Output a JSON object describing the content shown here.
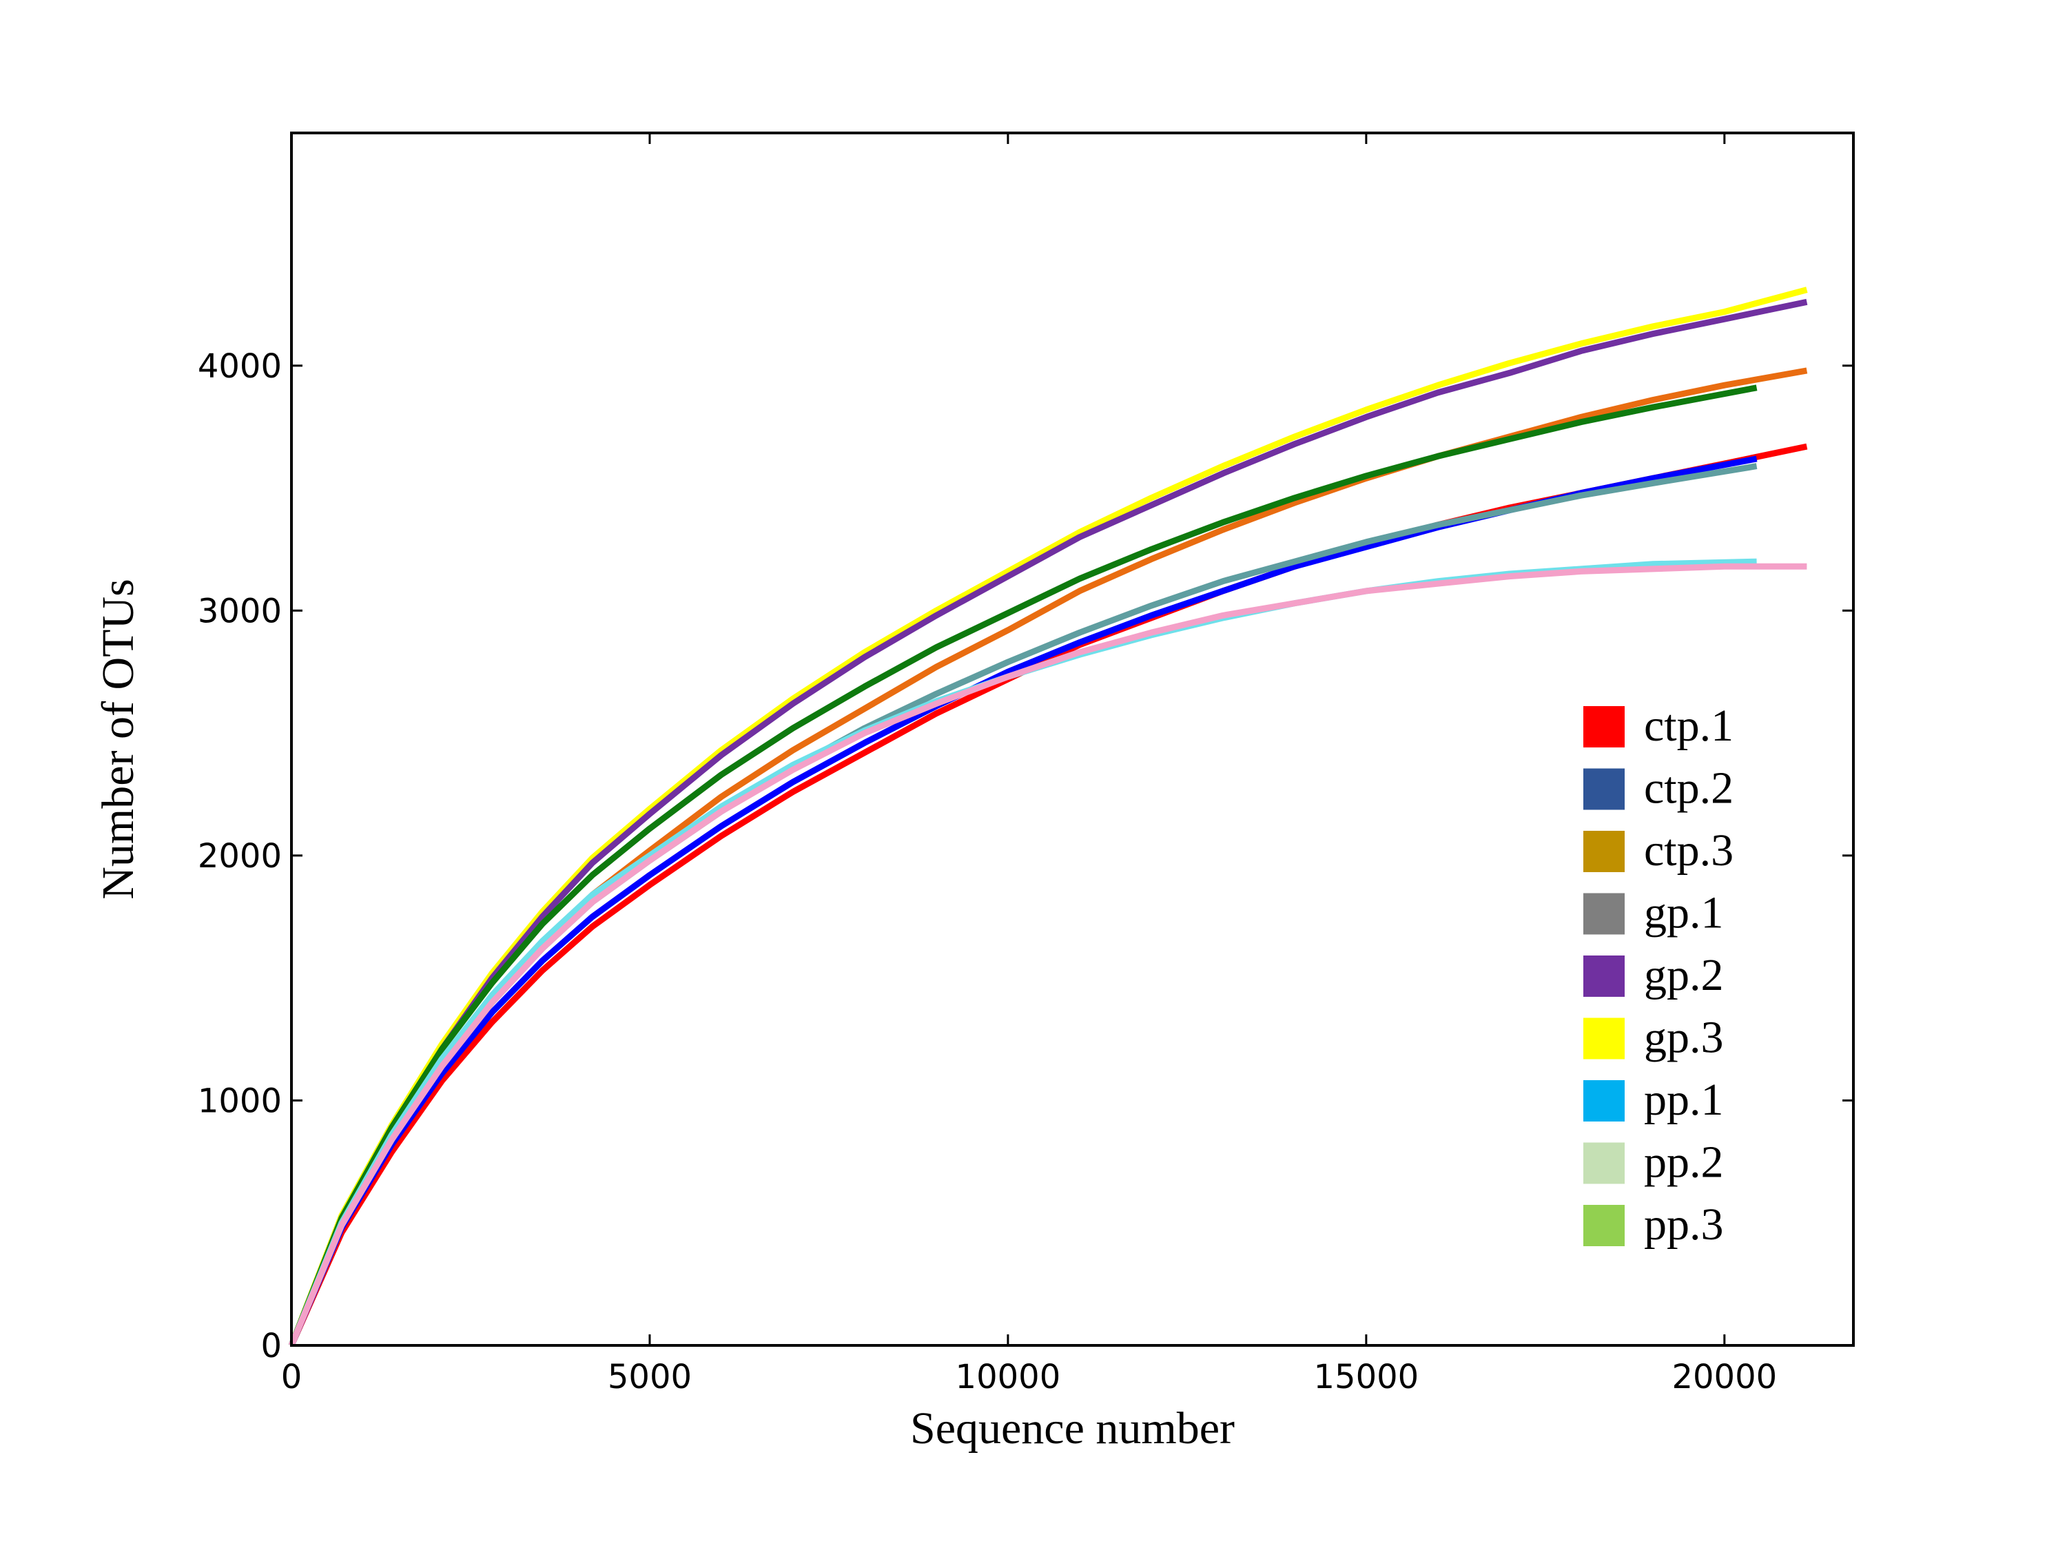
{
  "chart_data": {
    "type": "line",
    "title": "",
    "xlabel": "Sequence number",
    "ylabel": "Number of OTUs",
    "xlim": [
      0,
      21800
    ],
    "ylim": [
      0,
      4950
    ],
    "x_ticks": [
      0,
      5000,
      10000,
      15000,
      20000
    ],
    "y_ticks": [
      0,
      1000,
      2000,
      3000,
      4000
    ],
    "x_tick_labels": [
      "0",
      "5000",
      "10000",
      "15000",
      "20000"
    ],
    "y_tick_labels": [
      "0",
      "1000",
      "2000",
      "3000",
      "4000"
    ],
    "grid": false,
    "legend_position": "lower-right",
    "legend": [
      {
        "name": "ctp.1",
        "color": "#ff0000"
      },
      {
        "name": "ctp.2",
        "color": "#2f5597"
      },
      {
        "name": "ctp.3",
        "color": "#bf9000"
      },
      {
        "name": "gp.1",
        "color": "#7f7f7f"
      },
      {
        "name": "gp.2",
        "color": "#7030a0"
      },
      {
        "name": "gp.3",
        "color": "#ffff00"
      },
      {
        "name": "pp.1",
        "color": "#00b0f0"
      },
      {
        "name": "pp.2",
        "color": "#c5e0b4"
      },
      {
        "name": "pp.3",
        "color": "#92d050"
      }
    ],
    "lines": [
      {
        "color": "#ffff00",
        "x": [
          0,
          700,
          1400,
          2100,
          2800,
          3500,
          4200,
          5000,
          6000,
          7000,
          8000,
          9000,
          10000,
          11000,
          12000,
          13000,
          14000,
          15000,
          16000,
          17000,
          18000,
          19000,
          20000,
          21150
        ],
        "y": [
          0,
          530,
          900,
          1230,
          1520,
          1770,
          1990,
          2190,
          2430,
          2640,
          2830,
          3000,
          3160,
          3320,
          3460,
          3590,
          3710,
          3820,
          3920,
          4010,
          4090,
          4160,
          4220,
          4310
        ]
      },
      {
        "color": "#7030a0",
        "x": [
          0,
          700,
          1400,
          2100,
          2800,
          3500,
          4200,
          5000,
          6000,
          7000,
          8000,
          9000,
          10000,
          11000,
          12000,
          13000,
          14000,
          15000,
          16000,
          17000,
          18000,
          19000,
          20000,
          21150
        ],
        "y": [
          0,
          510,
          880,
          1210,
          1500,
          1750,
          1970,
          2170,
          2410,
          2620,
          2810,
          2980,
          3140,
          3300,
          3430,
          3560,
          3680,
          3790,
          3890,
          3970,
          4060,
          4130,
          4190,
          4260
        ]
      },
      {
        "color": "#e96c10",
        "x": [
          0,
          700,
          1400,
          2100,
          2800,
          3500,
          4200,
          5000,
          6000,
          7000,
          8000,
          9000,
          10000,
          11000,
          12000,
          13000,
          14000,
          15000,
          16000,
          17000,
          18000,
          19000,
          20000,
          21150
        ],
        "y": [
          0,
          500,
          850,
          1150,
          1410,
          1640,
          1840,
          2020,
          2240,
          2430,
          2600,
          2770,
          2920,
          3080,
          3210,
          3330,
          3440,
          3540,
          3630,
          3710,
          3790,
          3860,
          3920,
          3980
        ]
      },
      {
        "color": "#0e7a0e",
        "x": [
          0,
          700,
          1400,
          2100,
          2800,
          3500,
          4200,
          5000,
          6000,
          7000,
          8000,
          9000,
          10000,
          11000,
          12000,
          13000,
          14000,
          15000,
          16000,
          17000,
          18000,
          19000,
          20450
        ],
        "y": [
          0,
          520,
          890,
          1210,
          1480,
          1720,
          1920,
          2110,
          2330,
          2520,
          2690,
          2850,
          2990,
          3130,
          3250,
          3360,
          3460,
          3550,
          3630,
          3700,
          3770,
          3830,
          3910
        ]
      },
      {
        "color": "#ff0000",
        "x": [
          0,
          700,
          1400,
          2100,
          2800,
          3500,
          4200,
          5000,
          6000,
          7000,
          8000,
          9000,
          10000,
          11000,
          12000,
          13000,
          14000,
          15000,
          16000,
          17000,
          18000,
          19000,
          20000,
          21150
        ],
        "y": [
          0,
          460,
          790,
          1080,
          1320,
          1530,
          1710,
          1880,
          2080,
          2260,
          2420,
          2580,
          2720,
          2860,
          2970,
          3080,
          3180,
          3270,
          3350,
          3420,
          3480,
          3540,
          3600,
          3670
        ]
      },
      {
        "color": "#0000ff",
        "x": [
          0,
          700,
          1400,
          2100,
          2800,
          3500,
          4200,
          5000,
          6000,
          7000,
          8000,
          9000,
          10000,
          11000,
          12000,
          13000,
          14000,
          15000,
          16000,
          17000,
          18000,
          19000,
          20450
        ],
        "y": [
          0,
          480,
          820,
          1110,
          1360,
          1570,
          1750,
          1920,
          2120,
          2300,
          2460,
          2610,
          2750,
          2870,
          2980,
          3080,
          3180,
          3260,
          3340,
          3410,
          3480,
          3540,
          3620
        ]
      },
      {
        "color": "#5f9ea0",
        "x": [
          0,
          700,
          1400,
          2100,
          2800,
          3500,
          4200,
          5000,
          6000,
          7000,
          8000,
          9000,
          10000,
          11000,
          12000,
          13000,
          14000,
          15000,
          16000,
          17000,
          18000,
          19000,
          20450
        ],
        "y": [
          0,
          490,
          840,
          1140,
          1400,
          1620,
          1810,
          1980,
          2180,
          2360,
          2520,
          2660,
          2790,
          2910,
          3020,
          3120,
          3200,
          3280,
          3350,
          3410,
          3470,
          3520,
          3590
        ]
      },
      {
        "color": "#6ee0ea",
        "x": [
          0,
          700,
          1400,
          2100,
          2800,
          3500,
          4200,
          5000,
          6000,
          7000,
          8000,
          9000,
          10000,
          11000,
          12000,
          13000,
          14000,
          15000,
          16000,
          17000,
          18000,
          19000,
          20450
        ],
        "y": [
          0,
          500,
          860,
          1170,
          1430,
          1650,
          1840,
          2000,
          2200,
          2370,
          2510,
          2630,
          2730,
          2820,
          2900,
          2970,
          3030,
          3080,
          3120,
          3150,
          3170,
          3190,
          3200
        ]
      },
      {
        "color": "#f4a0c8",
        "x": [
          0,
          700,
          1400,
          2100,
          2800,
          3500,
          4200,
          5000,
          6000,
          7000,
          8000,
          9000,
          10000,
          11000,
          12000,
          13000,
          14000,
          15000,
          16000,
          17000,
          18000,
          19000,
          20000,
          21150
        ],
        "y": [
          0,
          490,
          840,
          1140,
          1400,
          1620,
          1810,
          1980,
          2180,
          2350,
          2500,
          2620,
          2730,
          2830,
          2910,
          2980,
          3030,
          3080,
          3110,
          3140,
          3160,
          3170,
          3180,
          3180
        ]
      }
    ]
  }
}
